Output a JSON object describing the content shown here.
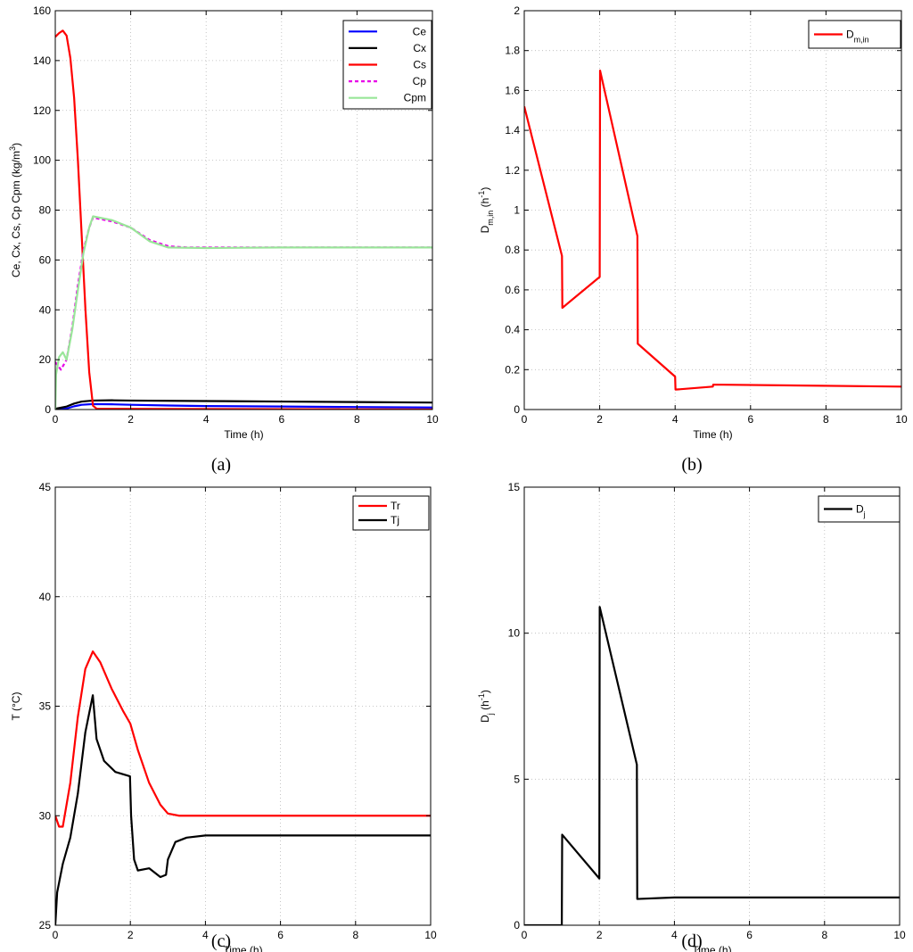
{
  "chart_data": [
    {
      "id": "a",
      "type": "line",
      "caption": "(a)",
      "xlabel": "Time (h)",
      "ylabel_parts": [
        "Ce, Cx, Cs, Cp Cpm (kg/m",
        "3",
        ")"
      ],
      "xlim": [
        0,
        10
      ],
      "ylim": [
        0,
        160
      ],
      "xticks": [
        0,
        2,
        4,
        6,
        8,
        10
      ],
      "yticks": [
        0,
        20,
        40,
        60,
        80,
        100,
        120,
        140,
        160
      ],
      "grid": true,
      "legend_position": "top-right",
      "series": [
        {
          "name": "Ce",
          "color": "#0000ff",
          "dash": "",
          "points": [
            [
              0,
              0
            ],
            [
              0.3,
              0.4
            ],
            [
              0.5,
              1.3
            ],
            [
              0.7,
              1.9
            ],
            [
              1,
              2.2
            ],
            [
              1.5,
              2.1
            ],
            [
              2,
              1.9
            ],
            [
              3,
              1.6
            ],
            [
              4,
              1.4
            ],
            [
              6,
              1.2
            ],
            [
              8,
              1.0
            ],
            [
              10,
              0.8
            ]
          ]
        },
        {
          "name": "Cx",
          "color": "#000000",
          "dash": "",
          "points": [
            [
              0,
              0.3
            ],
            [
              0.3,
              1.2
            ],
            [
              0.5,
              2.4
            ],
            [
              0.7,
              3.2
            ],
            [
              1,
              3.6
            ],
            [
              1.5,
              3.7
            ],
            [
              2,
              3.6
            ],
            [
              4,
              3.4
            ],
            [
              6,
              3.2
            ],
            [
              8,
              3.0
            ],
            [
              10,
              2.8
            ]
          ]
        },
        {
          "name": "Cs",
          "color": "#ff0000",
          "dash": "",
          "points": [
            [
              0,
              149.5
            ],
            [
              0.1,
              151
            ],
            [
              0.2,
              152
            ],
            [
              0.3,
              150
            ],
            [
              0.4,
              141
            ],
            [
              0.5,
              125
            ],
            [
              0.6,
              100
            ],
            [
              0.7,
              70
            ],
            [
              0.8,
              40
            ],
            [
              0.9,
              15
            ],
            [
              1,
              1.5
            ],
            [
              1.1,
              0.3
            ],
            [
              10,
              0
            ]
          ]
        },
        {
          "name": "Cp",
          "color": "#e800e8",
          "dash": "4 3",
          "points": [
            [
              0,
              19
            ],
            [
              0.15,
              16
            ],
            [
              0.3,
              20
            ],
            [
              0.45,
              33
            ],
            [
              0.6,
              50
            ],
            [
              0.75,
              64
            ],
            [
              0.9,
              73
            ],
            [
              1,
              77
            ],
            [
              1.5,
              75.5
            ],
            [
              2,
              73
            ],
            [
              2.5,
              68
            ],
            [
              3,
              65.5
            ],
            [
              3.5,
              65
            ],
            [
              4,
              65
            ],
            [
              6,
              65
            ],
            [
              8,
              65
            ],
            [
              10,
              65
            ]
          ]
        },
        {
          "name": "Cpm",
          "color": "#99e699",
          "dash": "",
          "points": [
            [
              0,
              0
            ],
            [
              0.02,
              14
            ],
            [
              0.1,
              21
            ],
            [
              0.2,
              23
            ],
            [
              0.3,
              20
            ],
            [
              0.45,
              32
            ],
            [
              0.6,
              48
            ],
            [
              0.75,
              63
            ],
            [
              0.9,
              73
            ],
            [
              1,
              77.5
            ],
            [
              1.5,
              76
            ],
            [
              2,
              73
            ],
            [
              2.5,
              67.5
            ],
            [
              3,
              65
            ],
            [
              4,
              64.8
            ],
            [
              6,
              65
            ],
            [
              10,
              65
            ]
          ]
        }
      ]
    },
    {
      "id": "b",
      "type": "line",
      "caption": "(b)",
      "xlabel": "Time (h)",
      "ylabel_parts": [
        "D",
        "m,in",
        " (h",
        "-1",
        ")"
      ],
      "xlim": [
        0,
        10
      ],
      "ylim": [
        0,
        2
      ],
      "xticks": [
        0,
        2,
        4,
        6,
        8,
        10
      ],
      "yticks": [
        0,
        0.2,
        0.4,
        0.6,
        0.8,
        1,
        1.2,
        1.4,
        1.6,
        1.8,
        2
      ],
      "grid": true,
      "legend_position": "top-right",
      "series": [
        {
          "name_parts": [
            "D",
            "m,in"
          ],
          "color": "#ff0000",
          "dash": "",
          "points": [
            [
              0,
              1.52
            ],
            [
              1,
              0.77
            ],
            [
              1.01,
              0.51
            ],
            [
              2,
              0.665
            ],
            [
              2.01,
              1.7
            ],
            [
              3,
              0.87
            ],
            [
              3.01,
              0.33
            ],
            [
              4,
              0.165
            ],
            [
              4.01,
              0.1
            ],
            [
              5,
              0.115
            ],
            [
              5.01,
              0.125
            ],
            [
              10,
              0.115
            ]
          ]
        }
      ]
    },
    {
      "id": "c",
      "type": "line",
      "caption": "(c)",
      "xlabel": "Time (h)",
      "ylabel": "T (°C)",
      "xlim": [
        0,
        10
      ],
      "ylim": [
        25,
        45
      ],
      "xticks": [
        0,
        2,
        4,
        6,
        8,
        10
      ],
      "yticks": [
        25,
        30,
        35,
        40,
        45
      ],
      "grid": true,
      "legend_position": "top-right",
      "series": [
        {
          "name": "Tr",
          "color": "#ff0000",
          "dash": "",
          "points": [
            [
              0,
              30
            ],
            [
              0.1,
              29.5
            ],
            [
              0.2,
              29.5
            ],
            [
              0.4,
              31.5
            ],
            [
              0.6,
              34.5
            ],
            [
              0.8,
              36.7
            ],
            [
              1,
              37.5
            ],
            [
              1.2,
              37
            ],
            [
              1.5,
              35.8
            ],
            [
              1.8,
              34.8
            ],
            [
              2,
              34.2
            ],
            [
              2.2,
              33
            ],
            [
              2.5,
              31.5
            ],
            [
              2.8,
              30.5
            ],
            [
              3,
              30.1
            ],
            [
              3.3,
              30
            ],
            [
              10,
              30
            ]
          ]
        },
        {
          "name": "Tj",
          "color": "#000000",
          "dash": "",
          "points": [
            [
              0,
              25
            ],
            [
              0.05,
              26.5
            ],
            [
              0.2,
              27.8
            ],
            [
              0.4,
              29
            ],
            [
              0.6,
              31
            ],
            [
              0.8,
              33.8
            ],
            [
              1,
              35.5
            ],
            [
              1.1,
              33.5
            ],
            [
              1.3,
              32.5
            ],
            [
              1.6,
              32
            ],
            [
              1.99,
              31.8
            ],
            [
              2.02,
              30
            ],
            [
              2.1,
              28
            ],
            [
              2.2,
              27.5
            ],
            [
              2.5,
              27.6
            ],
            [
              2.8,
              27.2
            ],
            [
              2.95,
              27.3
            ],
            [
              3,
              28
            ],
            [
              3.2,
              28.8
            ],
            [
              3.5,
              29
            ],
            [
              4,
              29.1
            ],
            [
              10,
              29.1
            ]
          ]
        }
      ]
    },
    {
      "id": "d",
      "type": "line",
      "caption": "(d)",
      "xlabel": "Time (h)",
      "ylabel_parts": [
        "D",
        "j",
        " (h",
        "-1",
        ")"
      ],
      "xlim": [
        0,
        10
      ],
      "ylim": [
        0,
        15
      ],
      "xticks": [
        0,
        2,
        4,
        6,
        8,
        10
      ],
      "yticks": [
        0,
        5,
        10,
        15
      ],
      "grid": true,
      "legend_position": "top-right",
      "series": [
        {
          "name_parts": [
            "D",
            "j"
          ],
          "color": "#000000",
          "dash": "",
          "points": [
            [
              0,
              0
            ],
            [
              1,
              0
            ],
            [
              1.01,
              3.1
            ],
            [
              2,
              1.6
            ],
            [
              2.01,
              10.9
            ],
            [
              3,
              5.5
            ],
            [
              3.01,
              0.9
            ],
            [
              4,
              0.95
            ],
            [
              6,
              0.95
            ],
            [
              10,
              0.95
            ]
          ]
        }
      ]
    }
  ]
}
